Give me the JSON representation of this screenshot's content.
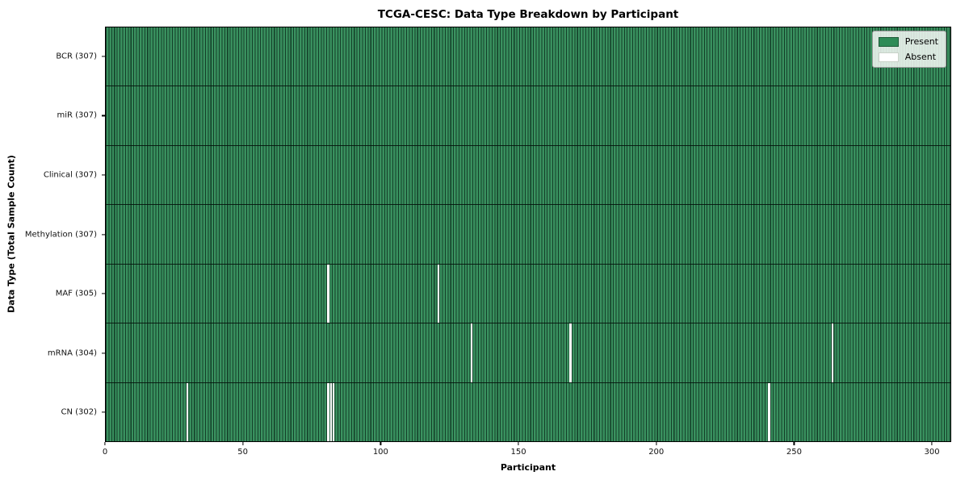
{
  "chart_data": {
    "type": "heatmap",
    "title": "TCGA-CESC: Data Type Breakdown by Participant",
    "xlabel": "Participant",
    "ylabel": "Data Type (Total Sample Count)",
    "x_ticks": [
      0,
      50,
      100,
      150,
      200,
      250,
      300
    ],
    "xlim": [
      0,
      307
    ],
    "n_participants": 307,
    "grid": false,
    "legend_position": "upper right",
    "legend": [
      {
        "label": "Present",
        "color": "#2e8b57"
      },
      {
        "label": "Absent",
        "color": "#ffffff"
      }
    ],
    "rows": [
      {
        "label": "BCR (307)",
        "data_type": "BCR",
        "present_count": 307,
        "absent_participants": []
      },
      {
        "label": "miR (307)",
        "data_type": "miR",
        "present_count": 307,
        "absent_participants": []
      },
      {
        "label": "Clinical (307)",
        "data_type": "Clinical",
        "present_count": 307,
        "absent_participants": []
      },
      {
        "label": "Methylation (307)",
        "data_type": "Methylation",
        "present_count": 307,
        "absent_participants": []
      },
      {
        "label": "MAF (305)",
        "data_type": "MAF",
        "present_count": 305,
        "absent_participants": [
          80,
          120
        ]
      },
      {
        "label": "mRNA (304)",
        "data_type": "mRNA",
        "present_count": 304,
        "absent_participants": [
          132,
          168,
          263
        ]
      },
      {
        "label": "CN (302)",
        "data_type": "CN",
        "present_count": 302,
        "absent_participants": [
          29,
          80,
          81,
          82,
          240
        ]
      }
    ]
  },
  "colors": {
    "present_fill": "#2e8b57",
    "present_fill_rendered": "#38905e",
    "absent_fill": "#ffffff",
    "cell_edge": "#0a2a1a",
    "plot_border": "#000000",
    "legend_border": "#9c9c9c",
    "legend_background": "#f7faf7",
    "text": "#000000"
  }
}
